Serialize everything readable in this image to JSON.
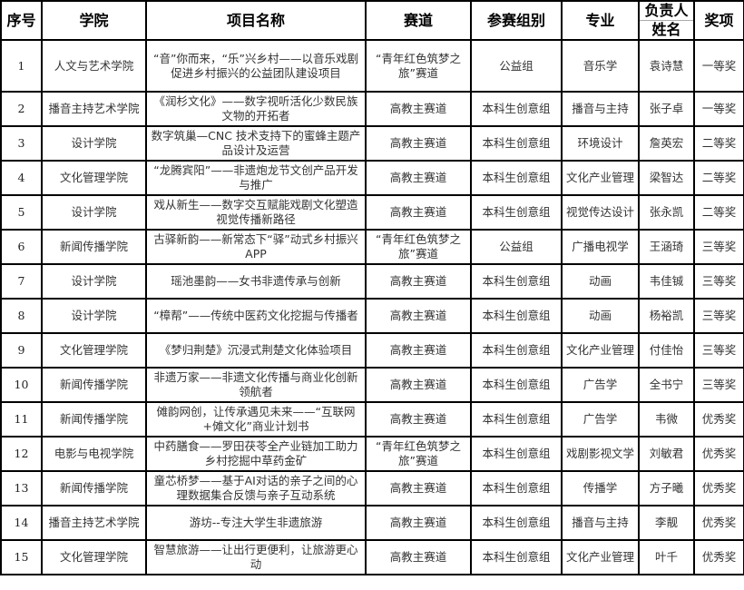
{
  "headers": {
    "seq": "序号",
    "college": "学院",
    "project": "项目名称",
    "track": "赛道",
    "group": "参赛组别",
    "major": "专业",
    "leader_line1": "负责人",
    "leader_line2": "姓名",
    "award": "奖项"
  },
  "rows": [
    {
      "seq": "1",
      "college": "人文与艺术学院",
      "project": "“音”你而来，“乐”兴乡村——以音乐戏剧促进乡村振兴的公益团队建设项目",
      "track": "“青年红色筑梦之旅”赛道",
      "group": "公益组",
      "major": "音乐学",
      "leader": "袁诗慧",
      "award": "一等奖"
    },
    {
      "seq": "2",
      "college": "播音主持艺术学院",
      "project": "《润杉文化》——数字视听活化少数民族文物的开拓者",
      "track": "高教主赛道",
      "group": "本科生创意组",
      "major": "播音与主持",
      "leader": "张子卓",
      "award": "一等奖"
    },
    {
      "seq": "3",
      "college": "设计学院",
      "project": "数字筑巢—CNC 技术支持下的蜜蜂主题产品设计及运营",
      "track": "高教主赛道",
      "group": "本科生创意组",
      "major": "环境设计",
      "leader": "詹英宏",
      "award": "二等奖"
    },
    {
      "seq": "4",
      "college": "文化管理学院",
      "project": "“龙腾宾阳”——非遗炮龙节文创产品开发与推广",
      "track": "高教主赛道",
      "group": "本科生创意组",
      "major": "文化产业管理",
      "leader": "梁智达",
      "award": "二等奖"
    },
    {
      "seq": "5",
      "college": "设计学院",
      "project": "戏从新生——数字交互赋能戏剧文化塑造视觉传播新路径",
      "track": "高教主赛道",
      "group": "本科生创意组",
      "major": "视觉传达设计",
      "leader": "张永凯",
      "award": "二等奖"
    },
    {
      "seq": "6",
      "college": "新闻传播学院",
      "project": "古驿新韵——新常态下“驿”动式乡村振兴APP",
      "track": "“青年红色筑梦之旅”赛道",
      "group": "公益组",
      "major": "广播电视学",
      "leader": "王涵琦",
      "award": "三等奖"
    },
    {
      "seq": "7",
      "college": "设计学院",
      "project": "瑶池墨韵——女书非遗传承与创新",
      "track": "高教主赛道",
      "group": "本科生创意组",
      "major": "动画",
      "leader": "韦佳铖",
      "award": "三等奖"
    },
    {
      "seq": "8",
      "college": "设计学院",
      "project": "“樟帮”——传统中医药文化挖掘与传播者",
      "track": "高教主赛道",
      "group": "本科生创意组",
      "major": "动画",
      "leader": "杨裕凯",
      "award": "三等奖"
    },
    {
      "seq": "9",
      "college": "文化管理学院",
      "project": "《梦归荆楚》沉浸式荆楚文化体验项目",
      "track": "高教主赛道",
      "group": "本科生创意组",
      "major": "文化产业管理",
      "leader": "付佳怡",
      "award": "三等奖"
    },
    {
      "seq": "10",
      "college": "新闻传播学院",
      "project": "非遗万家——非遗文化传播与商业化创新领航者",
      "track": "高教主赛道",
      "group": "本科生创意组",
      "major": "广告学",
      "leader": "全书宁",
      "award": "三等奖"
    },
    {
      "seq": "11",
      "college": "新闻传播学院",
      "project": "傩韵网创，让传承遇见未来——“互联网+傩文化”商业计划书",
      "track": "高教主赛道",
      "group": "本科生创意组",
      "major": "广告学",
      "leader": "韦微",
      "award": "优秀奖"
    },
    {
      "seq": "12",
      "college": "电影与电视学院",
      "project": "中药膳食——罗田茯苓全产业链加工助力乡村挖掘中草药金矿",
      "track": "“青年红色筑梦之旅”赛道",
      "group": "本科生创意组",
      "major": "戏剧影视文学",
      "leader": "刘敏君",
      "award": "优秀奖"
    },
    {
      "seq": "13",
      "college": "新闻传播学院",
      "project": "童芯桥梦——基于AI对话的亲子之间的心理数据集合反馈与亲子互动系统",
      "track": "高教主赛道",
      "group": "本科生创意组",
      "major": "传播学",
      "leader": "方子曦",
      "award": "优秀奖"
    },
    {
      "seq": "14",
      "college": "播音主持艺术学院",
      "project": "游坊--专注大学生非遗旅游",
      "track": "高教主赛道",
      "group": "本科生创意组",
      "major": "播音与主持",
      "leader": "李靓",
      "award": "优秀奖"
    },
    {
      "seq": "15",
      "college": "文化管理学院",
      "project": "智慧旅游——让出行更便利，让旅游更心动",
      "track": "高教主赛道",
      "group": "本科生创意组",
      "major": "文化产业管理",
      "leader": "叶千",
      "award": "优秀奖"
    }
  ]
}
